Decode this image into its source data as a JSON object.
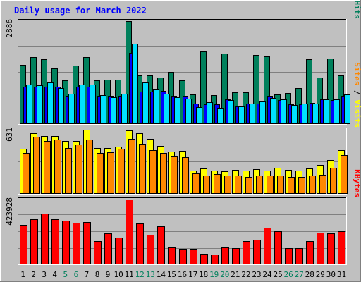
{
  "chart_data": {
    "type": "bar",
    "title": "Daily usage for March 2022",
    "categories": [
      "1",
      "2",
      "3",
      "4",
      "5",
      "6",
      "7",
      "8",
      "9",
      "10",
      "11",
      "12",
      "13",
      "14",
      "15",
      "16",
      "17",
      "18",
      "19",
      "20",
      "21",
      "22",
      "23",
      "24",
      "25",
      "26",
      "27",
      "28",
      "29",
      "30",
      "31"
    ],
    "weekend_days": [
      "5",
      "6",
      "12",
      "13",
      "19",
      "20",
      "26",
      "27"
    ],
    "panels": [
      {
        "id": "hits-panel",
        "max_label": "2886",
        "ymax": 2886,
        "grid": true,
        "right_label": [
          {
            "text": "Hits",
            "color": "#00805c"
          },
          {
            "text": " / ",
            "color": "#000000"
          },
          {
            "text": "Files",
            "color": "#0000ff"
          },
          {
            "text": " / ",
            "color": "#000000"
          },
          {
            "text": "Pages",
            "color": "#00e0ff"
          }
        ],
        "series": [
          {
            "name": "Hits",
            "color": "#00805c",
            "values": [
              1656,
              1878,
              1818,
              1554,
              1219,
              1645,
              1884,
              1217,
              1236,
              1236,
              2886,
              1356,
              1356,
              1314,
              1470,
              1224,
              836,
              2040,
              818,
              1986,
              887,
              892,
              1938,
              1907,
              828,
              878,
              1008,
              1824,
              1314,
              1830,
              1356
            ]
          },
          {
            "name": "Files",
            "color": "#0000ff",
            "values": [
              1050,
              1050,
              1050,
              1050,
              800,
              1050,
              1050,
              800,
              800,
              800,
              2000,
              900,
              900,
              930,
              800,
              800,
              580,
              560,
              560,
              700,
              500,
              580,
              580,
              790,
              670,
              560,
              560,
              600,
              700,
              680,
              800
            ]
          },
          {
            "name": "Pages",
            "color": "#00e0ff",
            "values": [
              1110,
              1080,
              1170,
              1000,
              848,
              1110,
              1106,
              810,
              756,
              850,
              2250,
              1170,
              990,
              848,
              742,
              720,
              480,
              620,
              460,
              680,
              490,
              575,
              660,
              725,
              700,
              530,
              570,
              580,
              700,
              700,
              840
            ]
          }
        ]
      },
      {
        "id": "visits-panel",
        "max_label": "631",
        "ymax": 631,
        "grid": true,
        "right_label": [
          {
            "text": "Visits",
            "color": "#ffff00"
          },
          {
            "text": " / ",
            "color": "#000000"
          },
          {
            "text": "Sites",
            "color": "#ff8800"
          }
        ],
        "series": [
          {
            "name": "Visits",
            "color": "#ffff00",
            "values": [
              447,
              593,
              572,
              572,
              518,
              518,
              631,
              448,
              453,
              464,
              624,
              593,
              538,
              470,
              418,
              423,
              229,
              249,
              226,
              225,
              239,
              226,
              241,
              229,
              254,
              233,
              227,
              248,
              286,
              334,
              432
            ]
          },
          {
            "name": "Sites",
            "color": "#ff8800",
            "values": [
              400,
              562,
              518,
              534,
              453,
              486,
              534,
              400,
              410,
              441,
              540,
              492,
              433,
              405,
              374,
              360,
              201,
              182,
              195,
              179,
              179,
              165,
              180,
              183,
              180,
              165,
              169,
              179,
              186,
              254,
              380
            ]
          }
        ]
      },
      {
        "id": "kbytes-panel",
        "max_label": "423928",
        "ymax": 423928,
        "grid": true,
        "right_label": [
          {
            "text": "KBytes",
            "color": "#ff0000"
          }
        ],
        "series": [
          {
            "name": "KBytes",
            "color": "#ff0000",
            "values": [
              258000,
              293000,
              333000,
              296000,
              284000,
              270000,
              277000,
              152000,
              202000,
              173000,
              423928,
              266000,
              193000,
              250000,
              112000,
              103000,
              100000,
              71000,
              63000,
              109000,
              108000,
              152000,
              159000,
              240000,
              218000,
              107000,
              107000,
              153000,
              206000,
              203000,
              217000
            ]
          }
        ]
      }
    ]
  }
}
